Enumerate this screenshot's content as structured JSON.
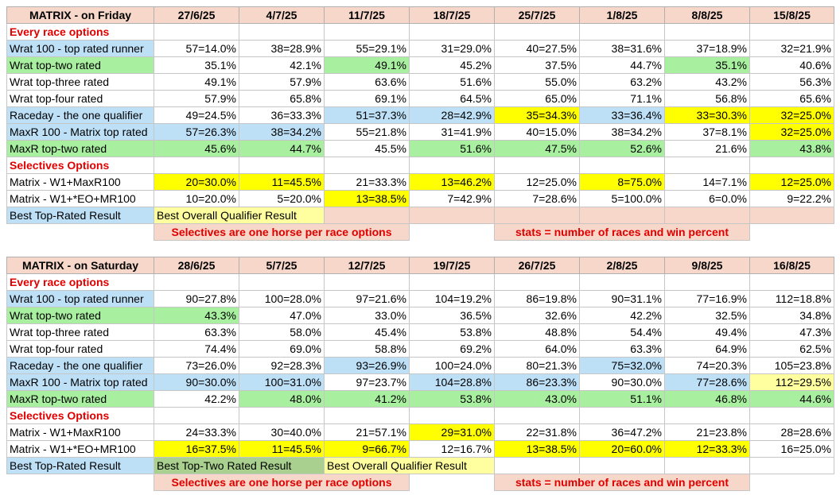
{
  "friday": {
    "title": "MATRIX - on Friday",
    "dates": [
      "27/6/25",
      "4/7/25",
      "11/7/25",
      "18/7/25",
      "25/7/25",
      "1/8/25",
      "8/8/25",
      "15/8/25"
    ],
    "section1": "Every race options",
    "rows": [
      {
        "label": "Wrat 100 - top rated runner",
        "lc": "blue",
        "cells": [
          [
            "57=14.0%",
            ""
          ],
          [
            "38=28.9%",
            ""
          ],
          [
            "55=29.1%",
            ""
          ],
          [
            "31=29.0%",
            ""
          ],
          [
            "40=27.5%",
            ""
          ],
          [
            "38=31.6%",
            ""
          ],
          [
            "37=18.9%",
            ""
          ],
          [
            "32=21.9%",
            ""
          ]
        ]
      },
      {
        "label": "Wrat top-two rated",
        "lc": "green",
        "cells": [
          [
            "35.1%",
            ""
          ],
          [
            "42.1%",
            ""
          ],
          [
            "49.1%",
            "green"
          ],
          [
            "45.2%",
            ""
          ],
          [
            "37.5%",
            ""
          ],
          [
            "44.7%",
            ""
          ],
          [
            "35.1%",
            "green"
          ],
          [
            "40.6%",
            ""
          ]
        ]
      },
      {
        "label": "Wrat top-three rated",
        "lc": "",
        "cells": [
          [
            "49.1%",
            ""
          ],
          [
            "57.9%",
            ""
          ],
          [
            "63.6%",
            ""
          ],
          [
            "51.6%",
            ""
          ],
          [
            "55.0%",
            ""
          ],
          [
            "63.2%",
            ""
          ],
          [
            "43.2%",
            ""
          ],
          [
            "56.3%",
            ""
          ]
        ]
      },
      {
        "label": "Wrat top-four rated",
        "lc": "",
        "cells": [
          [
            "57.9%",
            ""
          ],
          [
            "65.8%",
            ""
          ],
          [
            "69.1%",
            ""
          ],
          [
            "64.5%",
            ""
          ],
          [
            "65.0%",
            ""
          ],
          [
            "71.1%",
            ""
          ],
          [
            "56.8%",
            ""
          ],
          [
            "65.6%",
            ""
          ]
        ]
      },
      {
        "label": "Raceday - the one qualifier",
        "lc": "blue",
        "cells": [
          [
            "49=24.5%",
            ""
          ],
          [
            "36=33.3%",
            ""
          ],
          [
            "51=37.3%",
            "blue"
          ],
          [
            "28=42.9%",
            "blue"
          ],
          [
            "35=34.3%",
            "yellow"
          ],
          [
            "33=36.4%",
            "blue"
          ],
          [
            "33=30.3%",
            "yellow"
          ],
          [
            "32=25.0%",
            "yellow"
          ]
        ]
      },
      {
        "label": "MaxR 100 - Matrix top rated",
        "lc": "blue",
        "cells": [
          [
            "57=26.3%",
            "blue"
          ],
          [
            "38=34.2%",
            "blue"
          ],
          [
            "55=21.8%",
            ""
          ],
          [
            "31=41.9%",
            ""
          ],
          [
            "40=15.0%",
            ""
          ],
          [
            "38=34.2%",
            ""
          ],
          [
            "37=8.1%",
            ""
          ],
          [
            "32=25.0%",
            "yellow"
          ]
        ]
      },
      {
        "label": "MaxR top-two rated",
        "lc": "green",
        "cells": [
          [
            "45.6%",
            "green"
          ],
          [
            "44.7%",
            "green"
          ],
          [
            "45.5%",
            ""
          ],
          [
            "51.6%",
            "green"
          ],
          [
            "47.5%",
            "green"
          ],
          [
            "52.6%",
            "green"
          ],
          [
            "21.6%",
            ""
          ],
          [
            "43.8%",
            "green"
          ]
        ]
      }
    ],
    "section2": "Selectives Options",
    "sel": [
      {
        "label": "Matrix - W1+MaxR100",
        "cells": [
          [
            "20=30.0%",
            "yellow"
          ],
          [
            "11=45.5%",
            "yellow"
          ],
          [
            "21=33.3%",
            ""
          ],
          [
            "13=46.2%",
            "yellow"
          ],
          [
            "12=25.0%",
            ""
          ],
          [
            "8=75.0%",
            "yellow"
          ],
          [
            "14=7.1%",
            ""
          ],
          [
            "12=25.0%",
            "yellow"
          ]
        ]
      },
      {
        "label": "Matrix - W1+*EO+MR100",
        "cells": [
          [
            "10=20.0%",
            ""
          ],
          [
            "5=20.0%",
            ""
          ],
          [
            "13=38.5%",
            "yellow"
          ],
          [
            "7=42.9%",
            ""
          ],
          [
            "7=28.6%",
            ""
          ],
          [
            "5=100.0%",
            ""
          ],
          [
            "6=0.0%",
            ""
          ],
          [
            "9=22.2%",
            ""
          ]
        ]
      }
    ],
    "legend_label": "Best Top-Rated Result",
    "legend_mid": "Best Overall Qualifier Result",
    "legend_right": "",
    "foot_left": "Selectives are one horse per race options",
    "foot_right": "stats = number of races and win percent"
  },
  "saturday": {
    "title": "MATRIX - on Saturday",
    "dates": [
      "28/6/25",
      "5/7/25",
      "12/7/25",
      "19/7/25",
      "26/7/25",
      "2/8/25",
      "9/8/25",
      "16/8/25"
    ],
    "section1": "Every race options",
    "rows": [
      {
        "label": "Wrat 100 - top rated runner",
        "lc": "blue",
        "cells": [
          [
            "90=27.8%",
            ""
          ],
          [
            "100=28.0%",
            ""
          ],
          [
            "97=21.6%",
            ""
          ],
          [
            "104=19.2%",
            ""
          ],
          [
            "86=19.8%",
            ""
          ],
          [
            "90=31.1%",
            ""
          ],
          [
            "77=16.9%",
            ""
          ],
          [
            "112=18.8%",
            ""
          ]
        ]
      },
      {
        "label": "Wrat top-two rated",
        "lc": "green",
        "cells": [
          [
            "43.3%",
            "green"
          ],
          [
            "47.0%",
            ""
          ],
          [
            "33.0%",
            ""
          ],
          [
            "36.5%",
            ""
          ],
          [
            "32.6%",
            ""
          ],
          [
            "42.2%",
            ""
          ],
          [
            "32.5%",
            ""
          ],
          [
            "34.8%",
            ""
          ]
        ]
      },
      {
        "label": "Wrat top-three rated",
        "lc": "",
        "cells": [
          [
            "63.3%",
            ""
          ],
          [
            "58.0%",
            ""
          ],
          [
            "45.4%",
            ""
          ],
          [
            "53.8%",
            ""
          ],
          [
            "48.8%",
            ""
          ],
          [
            "54.4%",
            ""
          ],
          [
            "49.4%",
            ""
          ],
          [
            "47.3%",
            ""
          ]
        ]
      },
      {
        "label": "Wrat top-four rated",
        "lc": "",
        "cells": [
          [
            "74.4%",
            ""
          ],
          [
            "69.0%",
            ""
          ],
          [
            "58.8%",
            ""
          ],
          [
            "69.2%",
            ""
          ],
          [
            "64.0%",
            ""
          ],
          [
            "63.3%",
            ""
          ],
          [
            "64.9%",
            ""
          ],
          [
            "62.5%",
            ""
          ]
        ]
      },
      {
        "label": "Raceday - the one qualifier",
        "lc": "blue",
        "cells": [
          [
            "73=26.0%",
            ""
          ],
          [
            "92=28.3%",
            ""
          ],
          [
            "93=26.9%",
            "blue"
          ],
          [
            "100=24.0%",
            ""
          ],
          [
            "80=21.3%",
            ""
          ],
          [
            "75=32.0%",
            "blue"
          ],
          [
            "74=20.3%",
            ""
          ],
          [
            "105=23.8%",
            ""
          ]
        ]
      },
      {
        "label": "MaxR 100 - Matrix top rated",
        "lc": "blue",
        "cells": [
          [
            "90=30.0%",
            "blue"
          ],
          [
            "100=31.0%",
            "blue"
          ],
          [
            "97=23.7%",
            ""
          ],
          [
            "104=28.8%",
            "blue"
          ],
          [
            "86=23.3%",
            "blue"
          ],
          [
            "90=30.0%",
            ""
          ],
          [
            "77=28.6%",
            "blue"
          ],
          [
            "112=29.5%",
            "lyellow"
          ]
        ]
      },
      {
        "label": "MaxR top-two rated",
        "lc": "green",
        "cells": [
          [
            "42.2%",
            ""
          ],
          [
            "48.0%",
            "green"
          ],
          [
            "41.2%",
            "green"
          ],
          [
            "53.8%",
            "green"
          ],
          [
            "43.0%",
            "green"
          ],
          [
            "51.1%",
            "green"
          ],
          [
            "46.8%",
            "green"
          ],
          [
            "44.6%",
            "green"
          ]
        ]
      }
    ],
    "section2": "Selectives Options",
    "sel": [
      {
        "label": "Matrix - W1+MaxR100",
        "cells": [
          [
            "24=33.3%",
            ""
          ],
          [
            "30=40.0%",
            ""
          ],
          [
            "21=57.1%",
            ""
          ],
          [
            "29=31.0%",
            "yellow"
          ],
          [
            "22=31.8%",
            ""
          ],
          [
            "36=47.2%",
            ""
          ],
          [
            "21=23.8%",
            ""
          ],
          [
            "28=28.6%",
            ""
          ]
        ]
      },
      {
        "label": "Matrix - W1+*EO+MR100",
        "cells": [
          [
            "16=37.5%",
            "yellow"
          ],
          [
            "11=45.5%",
            "yellow"
          ],
          [
            "9=66.7%",
            "yellow"
          ],
          [
            "12=16.7%",
            ""
          ],
          [
            "13=38.5%",
            "yellow"
          ],
          [
            "20=60.0%",
            "yellow"
          ],
          [
            "12=33.3%",
            "yellow"
          ],
          [
            "16=25.0%",
            ""
          ]
        ]
      }
    ],
    "legend_label": "Best Top-Rated Result",
    "legend_mid": "Best Top-Two Rated Result",
    "legend_right": "Best Overall Qualifier Result",
    "foot_left": "Selectives are one horse per race options",
    "foot_right": "stats = number of races and win percent"
  }
}
